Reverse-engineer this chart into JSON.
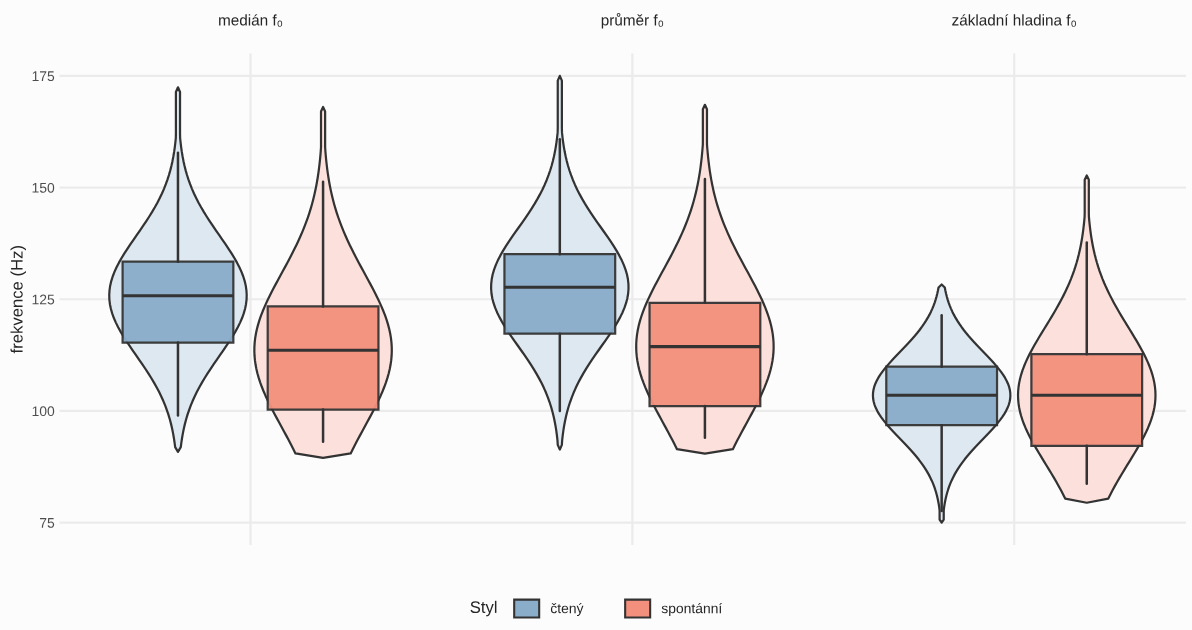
{
  "chart_data": {
    "type": "box",
    "ylabel": "frekvence (Hz)",
    "categories": [
      "medián f₀",
      "průměr f₀",
      "základní hladina f₀"
    ],
    "ylim": [
      70,
      180
    ],
    "yticks": [
      75,
      100,
      125,
      150,
      175
    ],
    "grid": true,
    "legend": "bottom",
    "legend_title": "Styl",
    "series": [
      {
        "name": "čtený",
        "color": "#8aadca",
        "boxes": [
          {
            "low": 99,
            "q1": 115.3,
            "median": 125.8,
            "q3": 133.4,
            "high": 157.8
          },
          {
            "low": 100,
            "q1": 117.3,
            "median": 127.7,
            "q3": 135.1,
            "high": 160.8
          },
          {
            "low": 77.6,
            "q1": 96.8,
            "median": 103.5,
            "q3": 109.9,
            "high": 121.4
          }
        ]
      },
      {
        "name": "spontánní",
        "color": "#f3907d",
        "boxes": [
          {
            "low": 93.1,
            "q1": 100.3,
            "median": 113.6,
            "q3": 123.4,
            "high": 151.3
          },
          {
            "low": 94,
            "q1": 101.1,
            "median": 114.4,
            "q3": 124.2,
            "high": 151.9
          },
          {
            "low": 83.7,
            "q1": 92.2,
            "median": 103.5,
            "q3": 112.7,
            "high": 137.7
          }
        ]
      }
    ]
  }
}
